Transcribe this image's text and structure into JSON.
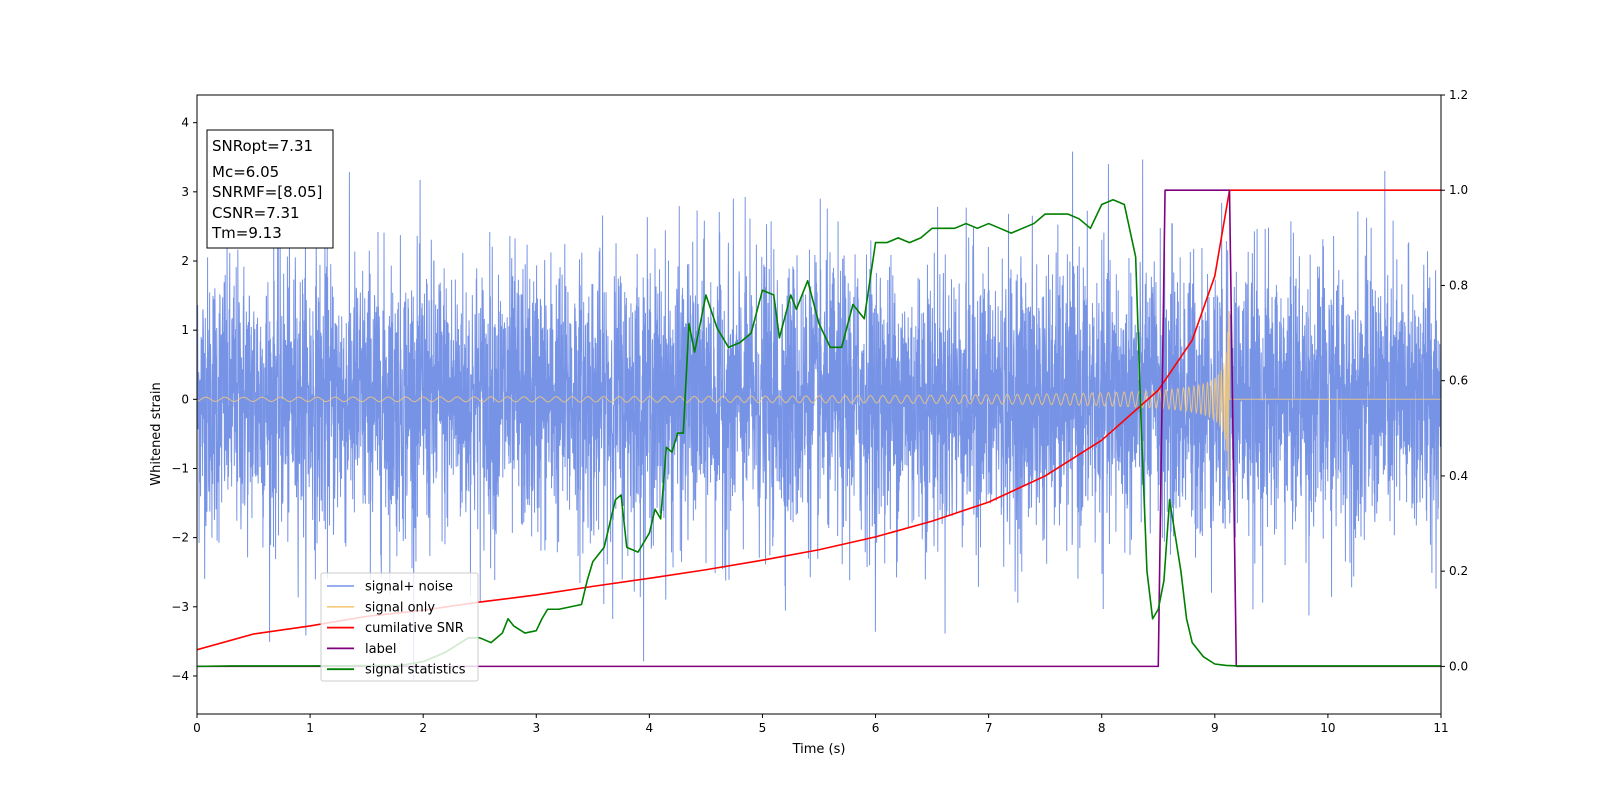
{
  "chart_data": {
    "type": "line",
    "xlabel": "Time (s)",
    "ylabel": "Whitened strain",
    "xlim": [
      0,
      11
    ],
    "ylim": [
      -4.55,
      4.4
    ],
    "y2lim": [
      -0.1,
      1.2
    ],
    "xticks": [
      "0",
      "1",
      "2",
      "3",
      "4",
      "5",
      "6",
      "7",
      "8",
      "9",
      "10",
      "11"
    ],
    "yticks": [
      "4",
      "3",
      "2",
      "1",
      "0",
      "−1",
      "−2",
      "−3",
      "−4"
    ],
    "y2ticks": [
      "1.2",
      "1.0",
      "0.8",
      "0.6",
      "0.4",
      "0.2",
      "0.0"
    ],
    "grid": false,
    "legend_placement": "lower-left",
    "info_box": {
      "line1": "SNRopt=7.31",
      "line2": "Mc=6.05",
      "line3": "SNRMF=[8.05]",
      "line4": "CSNR=7.31",
      "line5": "Tm=9.13"
    },
    "signal_params": {
      "merger_time": 9.13,
      "snr_opt": 7.31
    },
    "series": [
      {
        "name": "signal+ noise",
        "color": "#7793e6",
        "axis": "left",
        "kind": "noise",
        "std": 1.0
      },
      {
        "name": "signal only",
        "color": "#f5c97a",
        "axis": "left",
        "kind": "chirp",
        "t_merge": 9.13
      },
      {
        "name": "cumilative SNR",
        "color": "#ff0000",
        "axis": "right",
        "x": [
          0,
          0.5,
          1,
          1.5,
          2,
          2.5,
          3,
          3.5,
          4,
          4.5,
          5,
          5.5,
          6,
          6.5,
          7,
          7.5,
          8,
          8.5,
          8.8,
          9.0,
          9.13,
          11
        ],
        "values": [
          0.035,
          0.068,
          0.085,
          0.105,
          0.118,
          0.135,
          0.15,
          0.168,
          0.185,
          0.203,
          0.223,
          0.245,
          0.272,
          0.305,
          0.345,
          0.4,
          0.475,
          0.58,
          0.685,
          0.82,
          1.0,
          1.0
        ]
      },
      {
        "name": "label",
        "color": "#800080",
        "axis": "right",
        "x": [
          0,
          8.5,
          8.56,
          9.13,
          9.19,
          11
        ],
        "values": [
          0,
          0,
          1,
          1,
          0,
          0
        ]
      },
      {
        "name": "signal statistics",
        "color": "#008000",
        "axis": "right",
        "x": [
          0,
          0.3,
          1.0,
          1.8,
          2.0,
          2.2,
          2.4,
          2.5,
          2.6,
          2.7,
          2.75,
          2.8,
          2.9,
          3.0,
          3.05,
          3.1,
          3.2,
          3.3,
          3.4,
          3.45,
          3.5,
          3.6,
          3.7,
          3.75,
          3.8,
          3.9,
          4.0,
          4.05,
          4.1,
          4.15,
          4.2,
          4.25,
          4.3,
          4.35,
          4.4,
          4.5,
          4.6,
          4.7,
          4.8,
          4.9,
          5.0,
          5.1,
          5.15,
          5.25,
          5.3,
          5.4,
          5.5,
          5.6,
          5.7,
          5.8,
          5.9,
          6.0,
          6.1,
          6.2,
          6.3,
          6.4,
          6.5,
          6.6,
          6.7,
          6.8,
          6.9,
          7.0,
          7.1,
          7.2,
          7.3,
          7.4,
          7.5,
          7.6,
          7.7,
          7.8,
          7.9,
          8.0,
          8.1,
          8.2,
          8.3,
          8.35,
          8.4,
          8.45,
          8.5,
          8.55,
          8.6,
          8.7,
          8.75,
          8.8,
          8.9,
          9.0,
          9.1,
          9.2,
          11
        ],
        "values": [
          0,
          0.001,
          0.001,
          0.002,
          0.01,
          0.03,
          0.06,
          0.06,
          0.05,
          0.07,
          0.1,
          0.085,
          0.07,
          0.075,
          0.1,
          0.12,
          0.12,
          0.125,
          0.13,
          0.18,
          0.22,
          0.25,
          0.35,
          0.36,
          0.25,
          0.24,
          0.28,
          0.33,
          0.31,
          0.46,
          0.45,
          0.49,
          0.49,
          0.72,
          0.66,
          0.78,
          0.71,
          0.67,
          0.68,
          0.7,
          0.79,
          0.78,
          0.69,
          0.78,
          0.75,
          0.81,
          0.72,
          0.67,
          0.67,
          0.76,
          0.73,
          0.89,
          0.89,
          0.9,
          0.89,
          0.9,
          0.92,
          0.92,
          0.92,
          0.93,
          0.92,
          0.93,
          0.92,
          0.91,
          0.92,
          0.93,
          0.95,
          0.95,
          0.95,
          0.94,
          0.92,
          0.97,
          0.98,
          0.97,
          0.86,
          0.5,
          0.2,
          0.1,
          0.12,
          0.18,
          0.35,
          0.2,
          0.1,
          0.05,
          0.02,
          0.005,
          0.002,
          0.001,
          0.001
        ]
      }
    ]
  }
}
